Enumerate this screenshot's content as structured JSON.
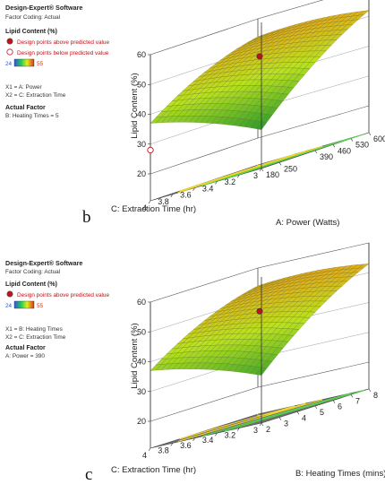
{
  "colors": {
    "surface_low": "#2b9a2e",
    "surface_mid": "#b9e21e",
    "surface_high": "#e8a61a",
    "floor": "#707070",
    "contour_high": "#f2d52a",
    "contour_low": "#56d64a",
    "point_above": "#c0121a",
    "legend_low": "#3355dd",
    "legend_high": "#dd3311"
  },
  "panels": [
    {
      "software": "Design-Expert® Software",
      "coding": "Factor Coding: Actual",
      "response": "Lipid Content (%)",
      "legend_above": "Design points above predicted value",
      "legend_below": "Design points below predicted value",
      "range_low": "24",
      "range_high": "55",
      "x1": "X1 = A: Power",
      "x2": "X2 = C: Extraction Time",
      "actual_factor_title": "Actual Factor",
      "actual_factor_value": "B: Heating Times = 5",
      "panel_label": "b"
    },
    {
      "software": "Design-Expert® Software",
      "coding": "Factor Coding: Actual",
      "response": "Lipid Content (%)",
      "legend_above": "Design points above predicted value",
      "range_low": "24",
      "range_high": "55",
      "x1": "X1 = B: Heating Times",
      "x2": "X2 = C: Extraction Time",
      "actual_factor_title": "Actual Factor",
      "actual_factor_value": "A: Power = 390",
      "panel_label": "c"
    }
  ],
  "chart_data": [
    {
      "type": "surface",
      "zlabel": "Lipid Content (%)",
      "xlabel": "A: Power (Watts)",
      "ylabel": "C: Extraction Time (hr)",
      "z_ticks": [
        "20",
        "30",
        "40",
        "50",
        "60"
      ],
      "x_ticks": [
        "180",
        "250",
        "390",
        "460",
        "530",
        "600"
      ],
      "y_ticks": [
        "3",
        "3.2",
        "3.4",
        "3.6",
        "3.8",
        "4"
      ],
      "zlim": [
        20,
        60
      ],
      "xlim": [
        180,
        600
      ],
      "ylim": [
        3,
        4
      ],
      "surface_corners": {
        "low_x_low_y": 24,
        "high_x_low_y": 52,
        "low_x_high_y": 37,
        "high_x_high_y": 54
      },
      "design_points": [
        {
          "x": 390,
          "y": 3.5,
          "z": 48,
          "side": "above"
        },
        {
          "x": 180,
          "y": 4,
          "z": 28,
          "side": "below"
        }
      ]
    },
    {
      "type": "surface",
      "zlabel": "Lipid Content (%)",
      "xlabel": "B: Heating Times (mins)",
      "ylabel": "C: Extraction Time (hr)",
      "z_ticks": [
        "20",
        "30",
        "40",
        "50",
        "60"
      ],
      "x_ticks": [
        "2",
        "3",
        "4",
        "5",
        "6",
        "7",
        "8"
      ],
      "y_ticks": [
        "3",
        "3.2",
        "3.4",
        "3.6",
        "3.8",
        "4"
      ],
      "zlim": [
        20,
        60
      ],
      "xlim": [
        2,
        8
      ],
      "ylim": [
        3,
        4
      ],
      "surface_corners": {
        "low_x_low_y": 27,
        "high_x_low_y": 53,
        "low_x_high_y": 37,
        "high_x_high_y": 54
      },
      "design_points": [
        {
          "x": 5,
          "y": 3.5,
          "z": 47,
          "side": "above"
        }
      ]
    }
  ]
}
